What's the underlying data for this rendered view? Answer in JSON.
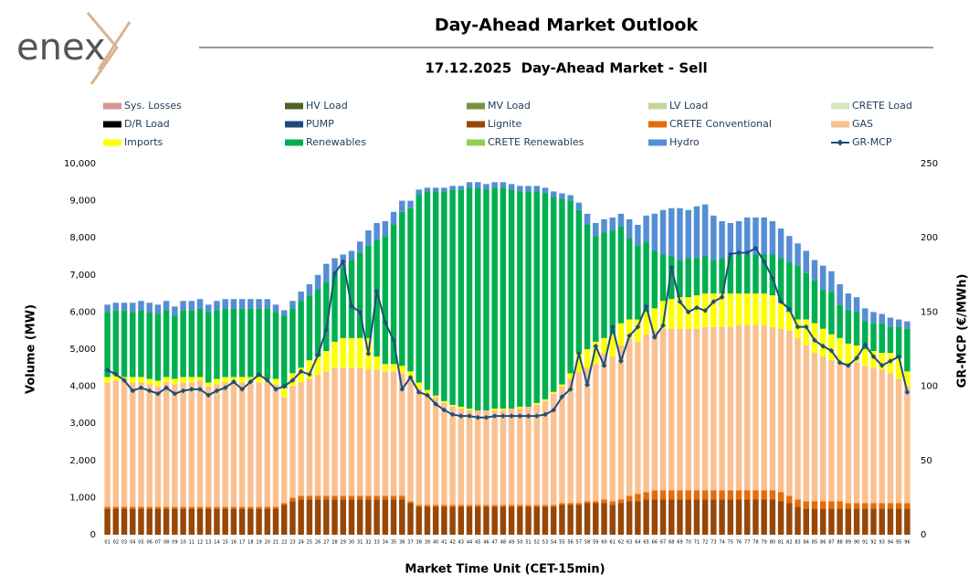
{
  "logo": "enex",
  "chart_data": {
    "type": "bar-line",
    "title": "Day-Ahead Market Outlook",
    "subtitle": "17.12.2025  Day-Ahead Market - Sell",
    "x_label": "Market Time Unit (CET-15min)",
    "y_label": "Volume (MW)",
    "y2_label": "GR-MCP (€/MWh)",
    "stacked": true,
    "grid": false,
    "categories": [
      "01",
      "02",
      "03",
      "04",
      "05",
      "06",
      "07",
      "08",
      "09",
      "10",
      "11",
      "12",
      "13",
      "14",
      "15",
      "16",
      "17",
      "18",
      "19",
      "20",
      "21",
      "22",
      "23",
      "24",
      "25",
      "26",
      "27",
      "28",
      "29",
      "30",
      "31",
      "32",
      "33",
      "34",
      "35",
      "36",
      "37",
      "38",
      "39",
      "40",
      "41",
      "42",
      "43",
      "44",
      "45",
      "46",
      "47",
      "48",
      "49",
      "50",
      "51",
      "52",
      "53",
      "54",
      "55",
      "56",
      "57",
      "58",
      "59",
      "60",
      "61",
      "62",
      "63",
      "64",
      "65",
      "66",
      "67",
      "68",
      "69",
      "70",
      "71",
      "72",
      "73",
      "74",
      "75",
      "76",
      "77",
      "78",
      "79",
      "80",
      "81",
      "82",
      "83",
      "84",
      "85",
      "86",
      "87",
      "88",
      "89",
      "90",
      "91",
      "92",
      "93",
      "94",
      "95",
      "96"
    ],
    "ylim": [
      0,
      10000
    ],
    "yticks": [
      0,
      {
        "value": 1000,
        "label": "1,000"
      },
      {
        "value": 2000,
        "label": "2,000"
      },
      {
        "value": 3000,
        "label": "3,000"
      },
      {
        "value": 4000,
        "label": "4,000"
      },
      {
        "value": 5000,
        "label": "5,000"
      },
      {
        "value": 6000,
        "label": "6,000"
      },
      {
        "value": 7000,
        "label": "7,000"
      },
      {
        "value": 8000,
        "label": "8,000"
      },
      {
        "value": 9000,
        "label": "9,000"
      },
      {
        "value": 10000,
        "label": "10,000"
      }
    ],
    "y2lim": [
      0,
      250
    ],
    "y2ticks": [
      0,
      50,
      100,
      150,
      200,
      250
    ],
    "series": [
      {
        "name": "Sys. Losses",
        "color": "#d99594"
      },
      {
        "name": "HV Load",
        "color": "#4f6228"
      },
      {
        "name": "MV Load",
        "color": "#77933c"
      },
      {
        "name": "LV Load",
        "color": "#c3d69b"
      },
      {
        "name": "CRETE Load",
        "color": "#d7e4bd"
      },
      {
        "name": "D/R Load",
        "color": "#000000"
      },
      {
        "name": "PUMP",
        "color": "#1f497d"
      },
      {
        "name": "Lignite",
        "color": "#974706",
        "values": [
          700,
          700,
          700,
          700,
          700,
          700,
          700,
          700,
          700,
          700,
          700,
          700,
          700,
          700,
          700,
          700,
          700,
          700,
          700,
          700,
          700,
          800,
          900,
          950,
          950,
          950,
          950,
          950,
          950,
          950,
          950,
          950,
          950,
          950,
          950,
          950,
          850,
          750,
          750,
          750,
          750,
          750,
          750,
          750,
          750,
          750,
          750,
          750,
          750,
          750,
          750,
          750,
          750,
          750,
          800,
          800,
          800,
          850,
          850,
          850,
          800,
          850,
          900,
          900,
          950,
          950,
          950,
          950,
          950,
          950,
          950,
          950,
          950,
          950,
          950,
          950,
          950,
          950,
          950,
          950,
          900,
          850,
          750,
          700,
          700,
          700,
          700,
          700,
          700,
          700,
          700,
          700,
          700,
          700,
          700,
          700
        ]
      },
      {
        "name": "CRETE Conventional",
        "color": "#e46c0a",
        "values": [
          50,
          50,
          50,
          50,
          50,
          50,
          50,
          50,
          50,
          50,
          50,
          50,
          50,
          50,
          50,
          50,
          50,
          50,
          50,
          50,
          50,
          50,
          100,
          100,
          100,
          100,
          100,
          100,
          100,
          100,
          100,
          100,
          100,
          100,
          100,
          100,
          50,
          50,
          50,
          50,
          50,
          50,
          50,
          50,
          50,
          50,
          50,
          50,
          50,
          50,
          50,
          50,
          50,
          50,
          50,
          50,
          50,
          50,
          50,
          100,
          100,
          100,
          150,
          200,
          200,
          250,
          250,
          250,
          250,
          250,
          250,
          250,
          250,
          250,
          250,
          250,
          250,
          250,
          250,
          250,
          250,
          200,
          200,
          200,
          200,
          200,
          200,
          200,
          150,
          150,
          150,
          150,
          150,
          150,
          150,
          150
        ]
      },
      {
        "name": "GAS",
        "color": "#fac090",
        "values": [
          3350,
          3400,
          3400,
          3350,
          3350,
          3300,
          3250,
          3350,
          3300,
          3350,
          3350,
          3400,
          3250,
          3300,
          3350,
          3350,
          3350,
          3400,
          3350,
          3350,
          3300,
          2850,
          3000,
          3050,
          3150,
          3250,
          3350,
          3450,
          3450,
          3450,
          3450,
          3400,
          3400,
          3350,
          3350,
          3300,
          3300,
          3150,
          3000,
          2900,
          2750,
          2650,
          2600,
          2550,
          2550,
          2550,
          2550,
          2550,
          2600,
          2600,
          2650,
          2700,
          2800,
          3000,
          3150,
          3350,
          3550,
          3600,
          3700,
          3950,
          3900,
          4150,
          4250,
          4100,
          4250,
          4300,
          4350,
          4350,
          4350,
          4350,
          4350,
          4400,
          4400,
          4400,
          4400,
          4450,
          4450,
          4450,
          4450,
          4400,
          4400,
          4450,
          4350,
          4200,
          4000,
          3900,
          3800,
          3750,
          3750,
          3800,
          3700,
          3650,
          3600,
          3500,
          3350,
          3150
        ]
      },
      {
        "name": "Imports",
        "color": "#ffff00",
        "values": [
          150,
          150,
          100,
          150,
          150,
          150,
          150,
          150,
          150,
          150,
          150,
          100,
          100,
          150,
          150,
          150,
          150,
          100,
          150,
          100,
          150,
          250,
          350,
          400,
          500,
          500,
          550,
          700,
          800,
          800,
          800,
          850,
          350,
          200,
          200,
          200,
          200,
          150,
          100,
          50,
          50,
          50,
          50,
          50,
          0,
          0,
          50,
          50,
          0,
          50,
          0,
          50,
          50,
          50,
          50,
          150,
          500,
          500,
          600,
          400,
          600,
          600,
          500,
          600,
          600,
          600,
          750,
          800,
          850,
          850,
          900,
          900,
          900,
          900,
          900,
          850,
          850,
          850,
          850,
          850,
          700,
          500,
          500,
          700,
          800,
          750,
          700,
          650,
          550,
          450,
          450,
          450,
          450,
          550,
          550,
          400
        ]
      },
      {
        "name": "Renewables",
        "color": "#00b050",
        "values": [
          1750,
          1750,
          1800,
          1750,
          1800,
          1800,
          1800,
          1800,
          1700,
          1800,
          1800,
          1850,
          1900,
          1850,
          1850,
          1850,
          1850,
          1850,
          1850,
          1900,
          1800,
          1950,
          1750,
          1800,
          1750,
          1800,
          1850,
          1850,
          1900,
          2100,
          2300,
          2500,
          3150,
          3450,
          3750,
          4150,
          4400,
          5050,
          5350,
          5500,
          5650,
          5800,
          5850,
          5950,
          6000,
          5950,
          5950,
          5950,
          5900,
          5800,
          5800,
          5700,
          5550,
          5250,
          5000,
          4650,
          3850,
          3350,
          2850,
          2850,
          2800,
          2600,
          2200,
          2000,
          1900,
          1550,
          1250,
          1150,
          1000,
          1050,
          1000,
          1000,
          900,
          950,
          1000,
          1050,
          1050,
          1050,
          1050,
          1100,
          1200,
          1350,
          1450,
          1250,
          1150,
          1050,
          1150,
          900,
          900,
          900,
          750,
          750,
          800,
          700,
          850,
          1150
        ]
      },
      {
        "name": "CRETE Renewables",
        "color": "#92d050"
      },
      {
        "name": "Hydro",
        "color": "#558ed5",
        "values": [
          200,
          200,
          200,
          250,
          250,
          250,
          250,
          250,
          250,
          250,
          250,
          250,
          200,
          250,
          250,
          250,
          250,
          250,
          250,
          250,
          200,
          150,
          200,
          250,
          300,
          400,
          500,
          400,
          350,
          250,
          300,
          400,
          450,
          400,
          350,
          300,
          200,
          150,
          100,
          100,
          100,
          100,
          100,
          150,
          150,
          150,
          150,
          150,
          150,
          150,
          150,
          150,
          150,
          150,
          150,
          150,
          200,
          300,
          350,
          350,
          350,
          350,
          500,
          550,
          700,
          1000,
          1200,
          1300,
          1400,
          1300,
          1400,
          1400,
          1200,
          1000,
          900,
          900,
          1000,
          1000,
          1000,
          900,
          800,
          700,
          600,
          600,
          550,
          650,
          550,
          550,
          450,
          400,
          350,
          300,
          250,
          250,
          200,
          200
        ]
      },
      {
        "name": "GR-MCP",
        "color": "#1f4e79",
        "axis": "y2",
        "type": "line",
        "values": [
          111,
          108,
          104,
          97,
          99,
          97,
          95,
          99,
          95,
          97,
          98,
          98,
          94,
          97,
          99,
          103,
          98,
          103,
          108,
          104,
          98,
          100,
          104,
          110,
          108,
          121,
          138,
          176,
          184,
          154,
          150,
          122,
          164,
          143,
          131,
          98,
          106,
          96,
          94,
          88,
          84,
          81,
          80,
          80,
          79,
          79,
          80,
          80,
          80,
          80,
          80,
          80,
          81,
          84,
          93,
          98,
          122,
          101,
          127,
          114,
          140,
          117,
          134,
          140,
          154,
          133,
          141,
          180,
          157,
          150,
          153,
          151,
          157,
          160,
          189,
          190,
          190,
          193,
          184,
          173,
          157,
          152,
          140,
          140,
          131,
          127,
          124,
          116,
          114,
          119,
          128,
          120,
          114,
          117,
          120,
          96
        ]
      }
    ]
  }
}
